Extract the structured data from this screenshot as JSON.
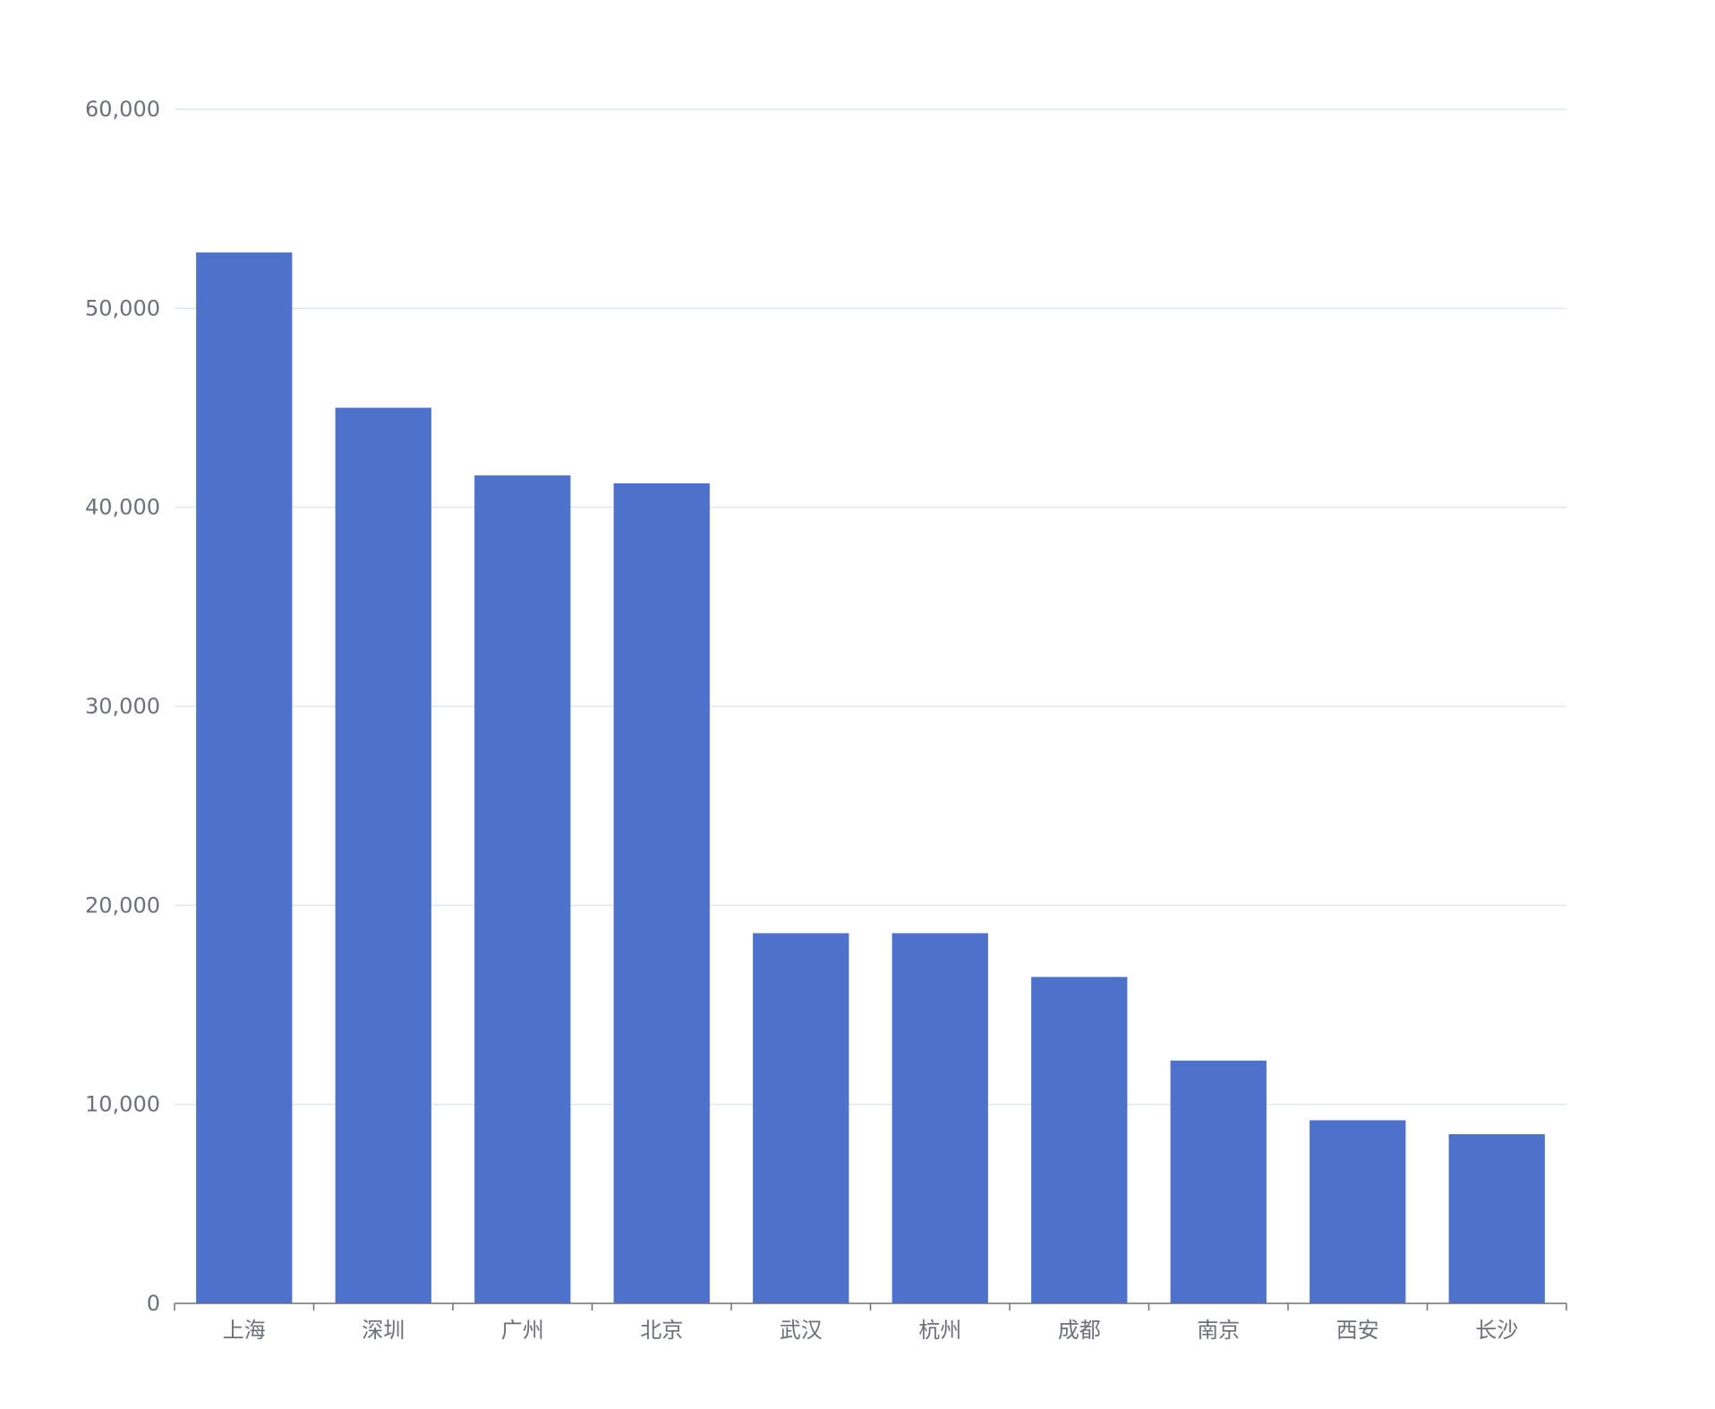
{
  "colors": {
    "bar": "#4e72cb",
    "grid": "#e0e6f1",
    "axis": "#6e7079",
    "label": "#6e7079"
  },
  "chart_data": {
    "type": "bar",
    "categories": [
      "上海",
      "深圳",
      "广州",
      "北京",
      "武汉",
      "杭州",
      "成都",
      "南京",
      "西安",
      "长沙"
    ],
    "values": [
      52800,
      45000,
      41600,
      41200,
      18600,
      18600,
      16400,
      12200,
      9200,
      8500
    ],
    "ylim": [
      0,
      60000
    ],
    "yticks": [
      0,
      10000,
      20000,
      30000,
      40000,
      50000,
      60000
    ],
    "ytick_labels": [
      "0",
      "10,000",
      "20,000",
      "30,000",
      "40,000",
      "50,000",
      "60,000"
    ],
    "grid": true,
    "legend": false
  }
}
